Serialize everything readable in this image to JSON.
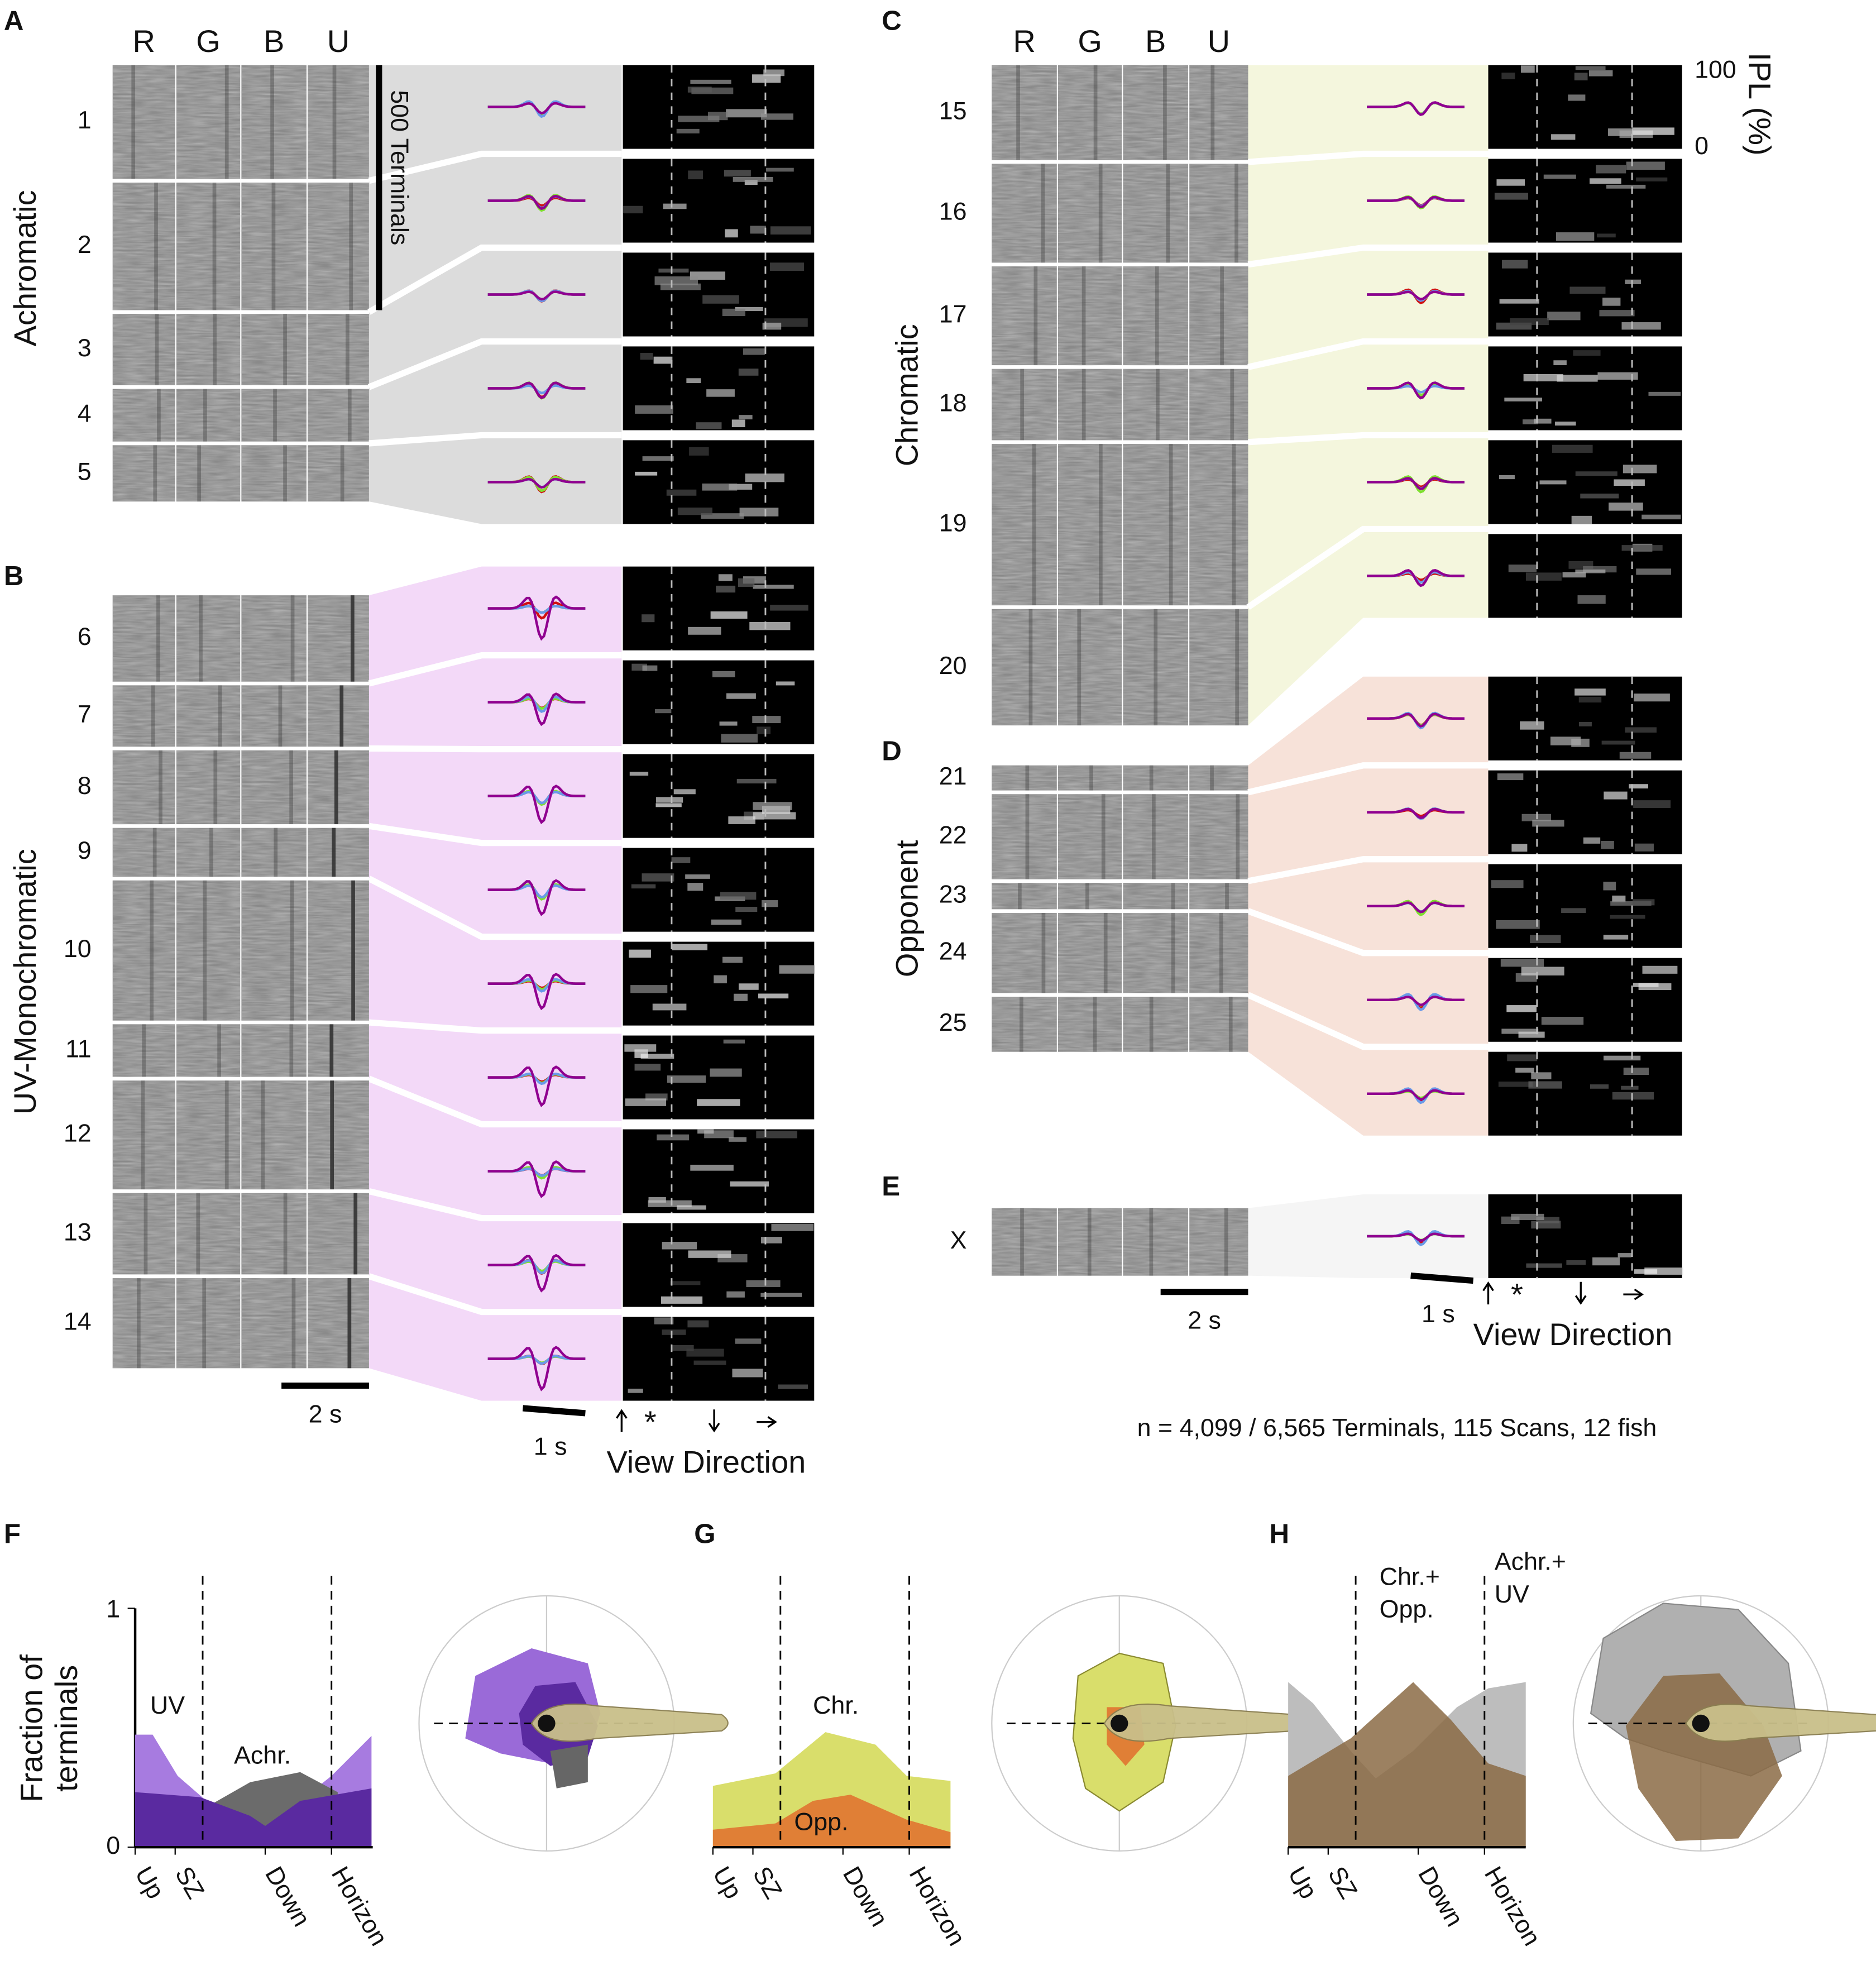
{
  "panels": {
    "A": {
      "letter": "A",
      "group": "Achromatic",
      "columns": [
        "R",
        "G",
        "B",
        "U"
      ],
      "clusters": [
        "1",
        "2",
        "3",
        "4",
        "5"
      ],
      "scale_bar": "500 Terminals"
    },
    "B": {
      "letter": "B",
      "group": "UV-Monochromatic",
      "clusters": [
        "6",
        "7",
        "8",
        "9",
        "10",
        "11",
        "12",
        "13",
        "14"
      ],
      "time_bar": "2 s",
      "trace_bar": "1 s",
      "star": "*",
      "view_direction": "View Direction"
    },
    "C": {
      "letter": "C",
      "group": "Chromatic",
      "columns": [
        "R",
        "G",
        "B",
        "U"
      ],
      "clusters": [
        "15",
        "16",
        "17",
        "18",
        "19",
        "20"
      ],
      "ipl_label": "IPL (%)",
      "ipl_ticks": [
        "100",
        "0"
      ]
    },
    "D": {
      "letter": "D",
      "group": "Opponent",
      "clusters": [
        "21",
        "22",
        "23",
        "24",
        "25"
      ]
    },
    "E": {
      "letter": "E",
      "clusters": [
        "X"
      ],
      "time_bar": "2 s",
      "trace_bar": "1 s",
      "star": "*",
      "view_direction": "View Direction"
    },
    "F": {
      "letter": "F",
      "y_label": [
        "Fraction of",
        "terminals"
      ],
      "y_ticks": [
        "1",
        "0"
      ],
      "x_ticks": [
        "Up",
        "SZ",
        "Down",
        "Horizon"
      ],
      "labels": [
        "UV",
        "Achr."
      ]
    },
    "G": {
      "letter": "G",
      "x_ticks": [
        "Up",
        "SZ",
        "Down",
        "Horizon"
      ],
      "labels": [
        "Chr.",
        "Opp."
      ]
    },
    "H": {
      "letter": "H",
      "x_ticks": [
        "Up",
        "SZ",
        "Down",
        "Horizon"
      ],
      "labels": [
        [
          "Chr.+",
          "Opp."
        ],
        [
          "Achr.+",
          "UV"
        ]
      ]
    }
  },
  "footnote": "n = 4,099 / 6,565 Terminals, 115 Scans, 12 fish"
}
